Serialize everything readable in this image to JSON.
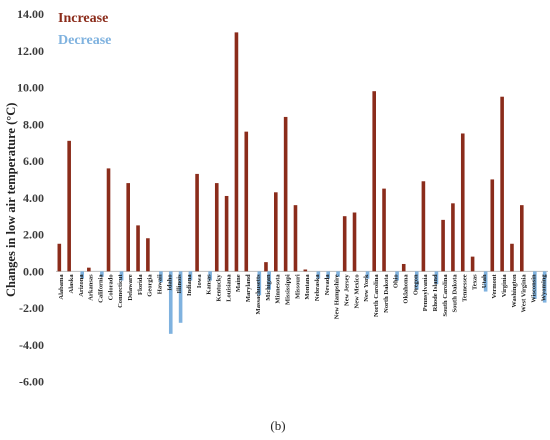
{
  "chart_data": {
    "type": "bar",
    "ylabel": "Changes in low air temperature (°C)",
    "ylim": [
      -7,
      14
    ],
    "y_ticks": [
      -6,
      -4,
      -2,
      0,
      2,
      4,
      6,
      8,
      10,
      12,
      14
    ],
    "y_tick_labels": [
      "-6.00",
      "-4.00",
      "-2.00",
      "0.00",
      "2.00",
      "4.00",
      "6.00",
      "8.00",
      "10.00",
      "12.00",
      "14.00"
    ],
    "panel_label": "(b)",
    "legend_position": "top-left",
    "categories": [
      "Alabama",
      "Alaska",
      "Arizona",
      "Arkansas",
      "California",
      "Colorado",
      "Connecticut",
      "Delaware",
      "Florida",
      "Georgia",
      "Hawaii",
      "Idaho",
      "Illinois",
      "Indiana",
      "Iowa",
      "Kansas",
      "Kentucky",
      "Louisiana",
      "Maine",
      "Maryland",
      "Massachusetts",
      "Michigan",
      "Minnesota",
      "Mississippi",
      "Missouri",
      "Montana",
      "Nebraska",
      "Nevada",
      "New Hampshire",
      "New Jersey",
      "New Mexico",
      "New York",
      "North Carolina",
      "North Dakota",
      "Ohio",
      "Oklahoma",
      "Oregon",
      "Pennsylvania",
      "Rhode Island",
      "South Carolina",
      "South Dakota",
      "Tennessee",
      "Texas",
      "Utah",
      "Vermont",
      "Virginia",
      "Washington",
      "West Virginia",
      "Wisconsin",
      "Wyoming"
    ],
    "series": [
      {
        "name": "Increase",
        "color": "#8b2c1b",
        "values": [
          1.5,
          7.1,
          0,
          0.2,
          0,
          5.6,
          0,
          4.8,
          2.5,
          1.8,
          0,
          0,
          0,
          0,
          5.3,
          0,
          4.8,
          4.1,
          13.0,
          7.6,
          0,
          0.5,
          4.3,
          8.4,
          3.6,
          0.1,
          0,
          0,
          0,
          3.0,
          3.2,
          0,
          9.8,
          4.5,
          0,
          0.4,
          0,
          4.9,
          0,
          2.8,
          3.7,
          7.5,
          0.8,
          0,
          5.0,
          9.5,
          1.5,
          3.6,
          0,
          0
        ]
      },
      {
        "name": "Decrease",
        "color": "#7fb2df",
        "values": [
          0,
          0,
          -0.4,
          0,
          -0.3,
          0,
          -0.5,
          0,
          0,
          0,
          -0.6,
          -3.4,
          -2.8,
          -0.5,
          0,
          -0.5,
          0,
          0,
          0,
          0,
          -1.3,
          -1.0,
          0,
          0,
          0,
          0,
          -0.4,
          -0.4,
          -0.3,
          0,
          0,
          -0.4,
          0,
          0,
          -0.5,
          0,
          -1.0,
          0,
          -0.7,
          0,
          0,
          0,
          0,
          -1.1,
          0,
          0,
          0,
          0,
          -1.5,
          -1.7
        ]
      }
    ]
  }
}
